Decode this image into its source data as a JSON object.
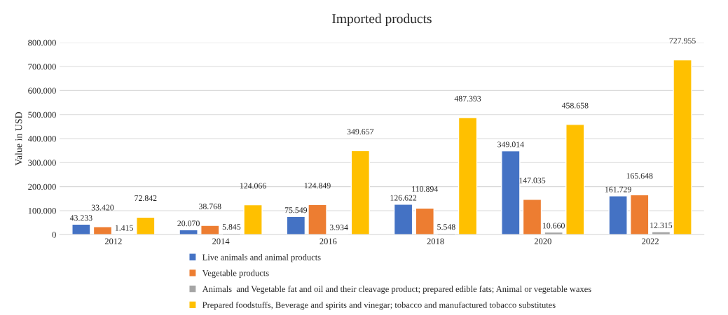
{
  "chart_data": {
    "type": "bar",
    "title": "Imported products",
    "ylabel": "Value in USD",
    "categories": [
      "2012",
      "2014",
      "2016",
      "2018",
      "2020",
      "2022"
    ],
    "series": [
      {
        "name": "Live animals and animal products",
        "color": "#4472c4",
        "values": [
          43233,
          20070,
          75549,
          126622,
          349014,
          161729
        ],
        "value_labels": [
          "43.233",
          "20.070",
          "75.549",
          "126.622",
          "349.014",
          "161.729"
        ]
      },
      {
        "name": "Vegetable products",
        "color": "#ed7d31",
        "values": [
          33420,
          38768,
          124849,
          110894,
          147035,
          165648
        ],
        "value_labels": [
          "33.420",
          "38.768",
          "124.849",
          "110.894",
          "147.035",
          "165.648"
        ]
      },
      {
        "name": "Animals  and Vegetable fat and oil and their cleavage product; prepared edible fats; Animal or vegetable waxes",
        "color": "#a5a5a5",
        "values": [
          1415,
          5845,
          3934,
          5548,
          10660,
          12315
        ],
        "value_labels": [
          "1.415",
          "5.845",
          "3.934",
          "5.548",
          "10.660",
          "12.315"
        ]
      },
      {
        "name": "Prepared foodstuffs, Beverage and spirits and vinegar; tobacco and manufactured tobacco substitutes",
        "color": "#ffc000",
        "values": [
          72842,
          124066,
          349657,
          487393,
          458658,
          727955
        ],
        "value_labels": [
          "72.842",
          "124.066",
          "349.657",
          "487.393",
          "458.658",
          "727.955"
        ]
      }
    ],
    "ylim": [
      0,
      800000
    ],
    "yticks": [
      {
        "value": 0,
        "label": "0"
      },
      {
        "value": 100000,
        "label": "100.000"
      },
      {
        "value": 200000,
        "label": "200.000"
      },
      {
        "value": 300000,
        "label": "300.000"
      },
      {
        "value": 400000,
        "label": "400.000"
      },
      {
        "value": 500000,
        "label": "500.000"
      },
      {
        "value": 600000,
        "label": "600.000"
      },
      {
        "value": 700000,
        "label": "700.000"
      },
      {
        "value": 800000,
        "label": "800.000"
      }
    ],
    "grid": "y",
    "legend": "bottom"
  }
}
